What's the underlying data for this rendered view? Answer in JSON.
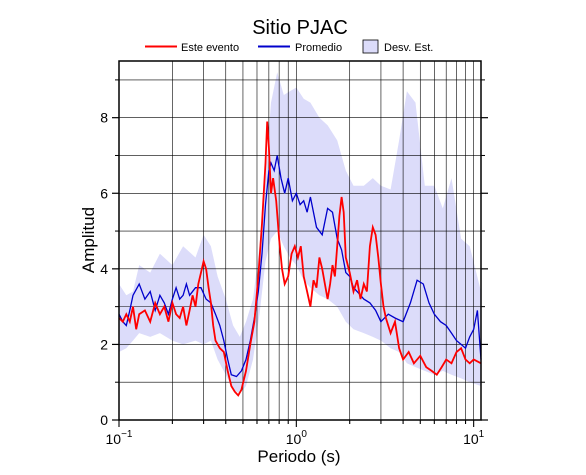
{
  "chart_data": {
    "type": "line",
    "title": "Sitio PJAC",
    "xlabel": "Periodo (s)",
    "ylabel": "Amplitud",
    "xscale": "log",
    "xlim": [
      0.1,
      11
    ],
    "ylim": [
      0,
      9.5
    ],
    "yticks": [
      0,
      2,
      4,
      6,
      8
    ],
    "xtick_labels": [
      {
        "base": "10",
        "exp": "−1",
        "value": 0.1
      },
      {
        "base": "10",
        "exp": "0",
        "value": 1
      },
      {
        "base": "10",
        "exp": "1",
        "value": 10
      }
    ],
    "grid": true,
    "legend_placement": "top",
    "legend": [
      {
        "label": "Este evento",
        "color": "#ff0000",
        "kind": "line"
      },
      {
        "label": "Promedio",
        "color": "#0000cc",
        "kind": "line"
      },
      {
        "label": "Desv. Est.",
        "color": "#dcdcfa",
        "kind": "patch"
      }
    ],
    "band": {
      "name": "Desv. Est.",
      "color": "#dcdcfa",
      "x": [
        0.1,
        0.11,
        0.12,
        0.13,
        0.15,
        0.17,
        0.2,
        0.23,
        0.27,
        0.3,
        0.33,
        0.36,
        0.4,
        0.44,
        0.48,
        0.52,
        0.57,
        0.62,
        0.67,
        0.72,
        0.78,
        0.85,
        0.92,
        1.0,
        1.1,
        1.2,
        1.35,
        1.5,
        1.7,
        1.9,
        2.1,
        2.4,
        2.7,
        3.0,
        3.4,
        3.8,
        4.2,
        4.7,
        5.3,
        6.0,
        6.7,
        7.5,
        8.5,
        9.5,
        11
      ],
      "upper": [
        3.6,
        3.3,
        3.4,
        4.1,
        3.9,
        4.4,
        4.1,
        4.6,
        4.3,
        4.9,
        4.6,
        3.8,
        3.2,
        2.5,
        2.2,
        2.6,
        3.2,
        4.6,
        6.4,
        8.4,
        9.2,
        8.6,
        8.7,
        8.8,
        8.5,
        8.4,
        8.0,
        7.8,
        7.4,
        6.6,
        6.2,
        6.2,
        6.4,
        6.2,
        6.1,
        7.4,
        8.7,
        8.4,
        6.2,
        6.2,
        5.6,
        6.4,
        4.8,
        4.6,
        3.4
      ],
      "lower": [
        1.8,
        1.9,
        2.1,
        2.3,
        2.2,
        2.3,
        2.1,
        2.0,
        2.1,
        2.0,
        2.1,
        1.6,
        1.2,
        0.8,
        0.7,
        0.9,
        1.6,
        2.8,
        4.2,
        4.8,
        5.0,
        4.6,
        4.3,
        4.1,
        3.7,
        3.5,
        3.3,
        3.2,
        3.0,
        2.6,
        2.4,
        2.3,
        2.2,
        2.1,
        1.9,
        1.8,
        1.5,
        1.4,
        1.3,
        1.2,
        1.3,
        1.2,
        1.1,
        1.0,
        0.9
      ]
    },
    "series": [
      {
        "name": "Este evento",
        "color": "#ff0000",
        "x": [
          0.1,
          0.105,
          0.11,
          0.115,
          0.12,
          0.125,
          0.13,
          0.14,
          0.15,
          0.16,
          0.17,
          0.18,
          0.19,
          0.2,
          0.21,
          0.22,
          0.23,
          0.24,
          0.25,
          0.26,
          0.27,
          0.28,
          0.29,
          0.3,
          0.31,
          0.32,
          0.33,
          0.34,
          0.35,
          0.37,
          0.39,
          0.41,
          0.43,
          0.45,
          0.47,
          0.49,
          0.52,
          0.55,
          0.58,
          0.61,
          0.64,
          0.67,
          0.685,
          0.7,
          0.72,
          0.74,
          0.77,
          0.8,
          0.83,
          0.86,
          0.9,
          0.94,
          0.98,
          1.02,
          1.06,
          1.1,
          1.15,
          1.2,
          1.25,
          1.3,
          1.35,
          1.4,
          1.45,
          1.5,
          1.55,
          1.6,
          1.65,
          1.7,
          1.75,
          1.8,
          1.85,
          1.9,
          2.0,
          2.1,
          2.2,
          2.3,
          2.4,
          2.5,
          2.6,
          2.7,
          2.8,
          2.9,
          3.0,
          3.1,
          3.2,
          3.4,
          3.6,
          3.8,
          4.0,
          4.3,
          4.6,
          5.0,
          5.4,
          5.8,
          6.2,
          6.6,
          7.0,
          7.5,
          8.0,
          8.5,
          9.0,
          9.5,
          10.0,
          11.0
        ],
        "y": [
          2.7,
          2.6,
          2.8,
          2.6,
          3.0,
          2.4,
          2.8,
          2.9,
          2.6,
          3.1,
          2.8,
          3.0,
          2.6,
          3.1,
          2.8,
          2.7,
          3.0,
          2.5,
          2.9,
          3.3,
          3.0,
          3.6,
          3.9,
          4.2,
          4.0,
          3.5,
          3.1,
          2.5,
          2.1,
          1.9,
          1.8,
          1.3,
          0.9,
          0.75,
          0.65,
          0.8,
          1.3,
          2.0,
          2.6,
          3.8,
          5.2,
          6.8,
          7.9,
          7.2,
          6.0,
          6.4,
          5.8,
          4.8,
          4.0,
          3.6,
          3.8,
          4.4,
          4.6,
          4.3,
          4.6,
          3.8,
          3.4,
          3.0,
          3.7,
          3.5,
          4.3,
          4.0,
          3.6,
          3.2,
          3.6,
          4.1,
          3.8,
          4.6,
          5.4,
          5.9,
          5.5,
          4.3,
          3.9,
          3.4,
          3.7,
          3.2,
          3.6,
          3.4,
          4.6,
          5.1,
          4.9,
          4.3,
          3.6,
          3.0,
          2.7,
          2.3,
          2.6,
          1.9,
          1.6,
          1.8,
          1.5,
          1.7,
          1.4,
          1.3,
          1.2,
          1.4,
          1.6,
          1.5,
          1.8,
          1.9,
          1.6,
          1.5,
          1.6,
          1.5
        ]
      },
      {
        "name": "Promedio",
        "color": "#0000cc",
        "x": [
          0.1,
          0.105,
          0.11,
          0.115,
          0.12,
          0.13,
          0.14,
          0.15,
          0.16,
          0.17,
          0.18,
          0.19,
          0.2,
          0.21,
          0.22,
          0.23,
          0.24,
          0.25,
          0.27,
          0.29,
          0.31,
          0.33,
          0.35,
          0.37,
          0.39,
          0.41,
          0.43,
          0.46,
          0.49,
          0.52,
          0.55,
          0.58,
          0.61,
          0.64,
          0.67,
          0.7,
          0.72,
          0.75,
          0.78,
          0.82,
          0.86,
          0.9,
          0.95,
          1.0,
          1.05,
          1.1,
          1.15,
          1.2,
          1.3,
          1.4,
          1.5,
          1.6,
          1.7,
          1.8,
          1.9,
          2.0,
          2.1,
          2.2,
          2.4,
          2.6,
          2.8,
          3.0,
          3.3,
          3.6,
          4.0,
          4.4,
          4.8,
          5.2,
          5.6,
          6.0,
          6.5,
          7.0,
          7.5,
          8.0,
          8.5,
          9.0,
          9.5,
          10.0,
          10.5,
          11.0
        ],
        "y": [
          2.8,
          2.6,
          2.5,
          2.9,
          3.3,
          3.6,
          3.2,
          3.4,
          2.9,
          3.3,
          3.1,
          2.8,
          3.2,
          3.5,
          3.2,
          3.3,
          3.6,
          3.3,
          3.5,
          3.5,
          3.2,
          3.1,
          2.8,
          2.5,
          2.1,
          1.6,
          1.2,
          1.15,
          1.3,
          1.6,
          2.1,
          2.7,
          3.4,
          4.4,
          5.7,
          6.6,
          6.8,
          6.6,
          7.0,
          6.4,
          6.0,
          6.4,
          5.8,
          6.0,
          5.7,
          5.8,
          5.5,
          5.9,
          5.1,
          4.9,
          5.6,
          5.5,
          4.8,
          4.5,
          3.9,
          3.8,
          3.5,
          3.4,
          3.2,
          3.1,
          2.9,
          2.6,
          2.8,
          2.7,
          2.6,
          3.1,
          3.7,
          3.6,
          3.1,
          2.8,
          2.6,
          2.5,
          2.3,
          2.1,
          2.0,
          1.9,
          2.2,
          2.4,
          2.9,
          1.6
        ]
      }
    ]
  }
}
